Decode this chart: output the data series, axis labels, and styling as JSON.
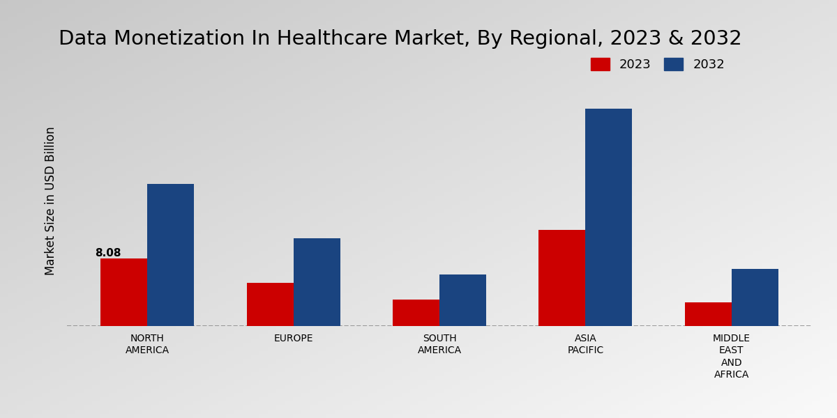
{
  "title": "Data Monetization In Healthcare Market, By Regional, 2023 & 2032",
  "ylabel": "Market Size in USD Billion",
  "categories": [
    "NORTH\nAMERICA",
    "EUROPE",
    "SOUTH\nAMERICA",
    "ASIA\nPACIFIC",
    "MIDDLE\nEAST\nAND\nAFRICA"
  ],
  "values_2023": [
    8.08,
    5.2,
    3.2,
    11.5,
    2.8
  ],
  "values_2032": [
    17.0,
    10.5,
    6.2,
    26.0,
    6.8
  ],
  "color_2023": "#cc0000",
  "color_2032": "#1a4480",
  "annotation_label": "8.08",
  "annotation_idx": 0,
  "bar_width": 0.32,
  "ylim": [
    0,
    30
  ],
  "dashed_line_y": 0,
  "bg_color_top_left": "#d0d0d0",
  "bg_color_bottom_right": "#f8f8f8",
  "legend_labels": [
    "2023",
    "2032"
  ],
  "title_fontsize": 21,
  "axis_label_fontsize": 12,
  "tick_label_fontsize": 10,
  "legend_fontsize": 13
}
